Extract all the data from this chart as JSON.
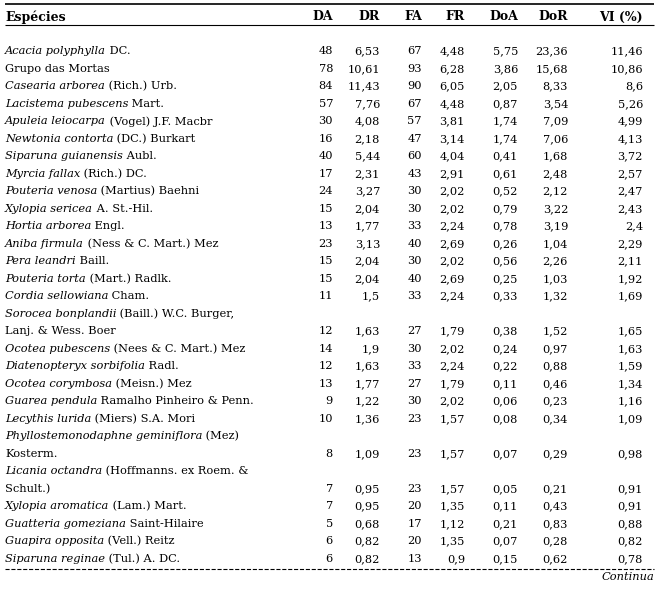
{
  "columns": [
    "Espécies",
    "DA",
    "DR",
    "FA",
    "FR",
    "DoA",
    "DoR",
    "VI (%)"
  ],
  "rows": [
    {
      "line1": [
        {
          "t": "Acacia polyphylla",
          "i": true
        },
        {
          "t": " DC.",
          "i": false
        }
      ],
      "line2": null,
      "line3": null,
      "vals": [
        "48",
        "6,53",
        "67",
        "4,48",
        "5,75",
        "23,36",
        "11,46"
      ]
    },
    {
      "line1": [
        {
          "t": "Grupo das Mortas",
          "i": false
        }
      ],
      "line2": null,
      "line3": null,
      "vals": [
        "78",
        "10,61",
        "93",
        "6,28",
        "3,86",
        "15,68",
        "10,86"
      ]
    },
    {
      "line1": [
        {
          "t": "Casearia arborea",
          "i": true
        },
        {
          "t": " (Rich.) Urb.",
          "i": false
        }
      ],
      "line2": null,
      "line3": null,
      "vals": [
        "84",
        "11,43",
        "90",
        "6,05",
        "2,05",
        "8,33",
        "8,6"
      ]
    },
    {
      "line1": [
        {
          "t": "Lacistema pubescens",
          "i": true
        },
        {
          "t": " Mart.",
          "i": false
        }
      ],
      "line2": null,
      "line3": null,
      "vals": [
        "57",
        "7,76",
        "67",
        "4,48",
        "0,87",
        "3,54",
        "5,26"
      ]
    },
    {
      "line1": [
        {
          "t": "Apuleia leiocarpa",
          "i": true
        },
        {
          "t": " (Vogel) J.F. Macbr",
          "i": false
        }
      ],
      "line2": null,
      "line3": null,
      "vals": [
        "30",
        "4,08",
        "57",
        "3,81",
        "1,74",
        "7,09",
        "4,99"
      ]
    },
    {
      "line1": [
        {
          "t": "Newtonia contorta",
          "i": true
        },
        {
          "t": " (DC.) Burkart",
          "i": false
        }
      ],
      "line2": null,
      "line3": null,
      "vals": [
        "16",
        "2,18",
        "47",
        "3,14",
        "1,74",
        "7,06",
        "4,13"
      ]
    },
    {
      "line1": [
        {
          "t": "Siparuna guianensis",
          "i": true
        },
        {
          "t": " Aubl.",
          "i": false
        }
      ],
      "line2": null,
      "line3": null,
      "vals": [
        "40",
        "5,44",
        "60",
        "4,04",
        "0,41",
        "1,68",
        "3,72"
      ]
    },
    {
      "line1": [
        {
          "t": "Myrcia fallax",
          "i": true
        },
        {
          "t": " (Rich.) DC.",
          "i": false
        }
      ],
      "line2": null,
      "line3": null,
      "vals": [
        "17",
        "2,31",
        "43",
        "2,91",
        "0,61",
        "2,48",
        "2,57"
      ]
    },
    {
      "line1": [
        {
          "t": "Pouteria venosa",
          "i": true
        },
        {
          "t": " (Martius) Baehni",
          "i": false
        }
      ],
      "line2": null,
      "line3": null,
      "vals": [
        "24",
        "3,27",
        "30",
        "2,02",
        "0,52",
        "2,12",
        "2,47"
      ]
    },
    {
      "line1": [
        {
          "t": "Xylopia sericea",
          "i": true
        },
        {
          "t": " A. St.-Hil.",
          "i": false
        }
      ],
      "line2": null,
      "line3": null,
      "vals": [
        "15",
        "2,04",
        "30",
        "2,02",
        "0,79",
        "3,22",
        "2,43"
      ]
    },
    {
      "line1": [
        {
          "t": "Hortia arborea",
          "i": true
        },
        {
          "t": " Engl.",
          "i": false
        }
      ],
      "line2": null,
      "line3": null,
      "vals": [
        "13",
        "1,77",
        "33",
        "2,24",
        "0,78",
        "3,19",
        "2,4"
      ]
    },
    {
      "line1": [
        {
          "t": "Aniba firmula",
          "i": true
        },
        {
          "t": " (Ness & C. Mart.) Mez",
          "i": false
        }
      ],
      "line2": null,
      "line3": null,
      "vals": [
        "23",
        "3,13",
        "40",
        "2,69",
        "0,26",
        "1,04",
        "2,29"
      ]
    },
    {
      "line1": [
        {
          "t": "Pera leandri",
          "i": true
        },
        {
          "t": " Baill.",
          "i": false
        }
      ],
      "line2": null,
      "line3": null,
      "vals": [
        "15",
        "2,04",
        "30",
        "2,02",
        "0,56",
        "2,26",
        "2,11"
      ]
    },
    {
      "line1": [
        {
          "t": "Pouteria torta",
          "i": true
        },
        {
          "t": " (Mart.) Radlk.",
          "i": false
        }
      ],
      "line2": null,
      "line3": null,
      "vals": [
        "15",
        "2,04",
        "40",
        "2,69",
        "0,25",
        "1,03",
        "1,92"
      ]
    },
    {
      "line1": [
        {
          "t": "Cordia sellowiana",
          "i": true
        },
        {
          "t": " Cham.",
          "i": false
        }
      ],
      "line2": null,
      "line3": null,
      "vals": [
        "11",
        "1,5",
        "33",
        "2,24",
        "0,33",
        "1,32",
        "1,69"
      ]
    },
    {
      "line1": [
        {
          "t": "Sorocea bonplandii",
          "i": true
        },
        {
          "t": " (Baill.) W.C. Burger,",
          "i": false
        }
      ],
      "line2": [
        {
          "t": "Lanj. & Wess. Boer",
          "i": false
        }
      ],
      "line3": null,
      "vals": [
        "12",
        "1,63",
        "27",
        "1,79",
        "0,38",
        "1,52",
        "1,65"
      ]
    },
    {
      "line1": [
        {
          "t": "Ocotea pubescens",
          "i": true
        },
        {
          "t": " (Nees & C. Mart.) Mez",
          "i": false
        }
      ],
      "line2": null,
      "line3": null,
      "vals": [
        "14",
        "1,9",
        "30",
        "2,02",
        "0,24",
        "0,97",
        "1,63"
      ]
    },
    {
      "line1": [
        {
          "t": "Diatenopteryx sorbifolia",
          "i": true
        },
        {
          "t": " Radl.",
          "i": false
        }
      ],
      "line2": null,
      "line3": null,
      "vals": [
        "12",
        "1,63",
        "33",
        "2,24",
        "0,22",
        "0,88",
        "1,59"
      ]
    },
    {
      "line1": [
        {
          "t": "Ocotea corymbosa",
          "i": true
        },
        {
          "t": " (Meisn.) Mez",
          "i": false
        }
      ],
      "line2": null,
      "line3": null,
      "vals": [
        "13",
        "1,77",
        "27",
        "1,79",
        "0,11",
        "0,46",
        "1,34"
      ]
    },
    {
      "line1": [
        {
          "t": "Guarea pendula",
          "i": true
        },
        {
          "t": " Ramalho Pinheiro & Penn.",
          "i": false
        }
      ],
      "line2": null,
      "line3": null,
      "vals": [
        "9",
        "1,22",
        "30",
        "2,02",
        "0,06",
        "0,23",
        "1,16"
      ]
    },
    {
      "line1": [
        {
          "t": "Lecythis lurida",
          "i": true
        },
        {
          "t": " (Miers) S.A. Mori",
          "i": false
        }
      ],
      "line2": null,
      "line3": null,
      "vals": [
        "10",
        "1,36",
        "23",
        "1,57",
        "0,08",
        "0,34",
        "1,09"
      ]
    },
    {
      "line1": [
        {
          "t": "Phyllostemonodaphne geminiflora",
          "i": true
        },
        {
          "t": " (Mez)",
          "i": false
        }
      ],
      "line2": [
        {
          "t": "Kosterm.",
          "i": false
        }
      ],
      "line3": null,
      "vals": [
        "8",
        "1,09",
        "23",
        "1,57",
        "0,07",
        "0,29",
        "0,98"
      ]
    },
    {
      "line1": [
        {
          "t": "Licania octandra",
          "i": true
        },
        {
          "t": " (Hoffmanns. ex Roem. &",
          "i": false
        }
      ],
      "line2": [
        {
          "t": "Schult.)",
          "i": false
        }
      ],
      "line3": null,
      "vals": [
        "7",
        "0,95",
        "23",
        "1,57",
        "0,05",
        "0,21",
        "0,91"
      ]
    },
    {
      "line1": [
        {
          "t": "Xylopia aromatica",
          "i": true
        },
        {
          "t": " (Lam.) Mart.",
          "i": false
        }
      ],
      "line2": null,
      "line3": null,
      "vals": [
        "7",
        "0,95",
        "20",
        "1,35",
        "0,11",
        "0,43",
        "0,91"
      ]
    },
    {
      "line1": [
        {
          "t": "Guatteria gomeziana",
          "i": true
        },
        {
          "t": " Saint-Hilaire",
          "i": false
        }
      ],
      "line2": null,
      "line3": null,
      "vals": [
        "5",
        "0,68",
        "17",
        "1,12",
        "0,21",
        "0,83",
        "0,88"
      ]
    },
    {
      "line1": [
        {
          "t": "Guapira opposita",
          "i": true
        },
        {
          "t": " (Vell.) Reitz",
          "i": false
        }
      ],
      "line2": null,
      "line3": null,
      "vals": [
        "6",
        "0,82",
        "20",
        "1,35",
        "0,07",
        "0,28",
        "0,82"
      ]
    },
    {
      "line1": [
        {
          "t": "Siparuna reginae",
          "i": true
        },
        {
          "t": " (Tul.) A. DC.",
          "i": false
        }
      ],
      "line2": null,
      "line3": null,
      "vals": [
        "6",
        "0,82",
        "13",
        "0,9",
        "0,15",
        "0,62",
        "0,78"
      ]
    }
  ],
  "font_size": 8.2,
  "header_font_size": 9.0,
  "bg_color": "#ffffff",
  "text_color": "#000000",
  "line_color": "#000000",
  "continua_text": "Continua"
}
